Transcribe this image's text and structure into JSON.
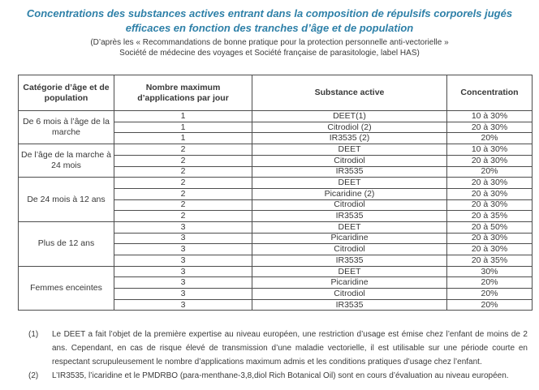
{
  "colors": {
    "title": "#2e80a8",
    "text": "#383838",
    "table_border": "#4d4d4d"
  },
  "title": {
    "lines": [
      "Concentrations des substances actives entrant dans la composition de répulsifs corporels jugés",
      "efficaces en fonction des tranches d’âge et de population"
    ]
  },
  "subtitle": {
    "lines": [
      "(D’après les « Recommandations de bonne pratique pour la protection personnelle anti-vectorielle »",
      "Société de médecine des voyages et Société française de parasitologie, label HAS)"
    ]
  },
  "table": {
    "headers": [
      "Catégorie d’âge et de population",
      "Nombre maximum d’applications par jour",
      "Substance active",
      "Concentration"
    ],
    "groups": [
      {
        "category": "De 6 mois à l’âge de la marche",
        "rows": [
          {
            "applications": "1",
            "substance": "DEET(1)",
            "concentration": "10 à 30%"
          },
          {
            "applications": "1",
            "substance": "Citrodiol (2)",
            "concentration": "20 à 30%"
          },
          {
            "applications": "1",
            "substance": "IR3535 (2)",
            "concentration": "20%"
          }
        ]
      },
      {
        "category": "De l’âge de la marche à 24 mois",
        "rows": [
          {
            "applications": "2",
            "substance": "DEET",
            "concentration": "10 à 30%"
          },
          {
            "applications": "2",
            "substance": "Citrodiol",
            "concentration": "20 à 30%"
          },
          {
            "applications": "2",
            "substance": "IR3535",
            "concentration": "20%"
          }
        ]
      },
      {
        "category": "De 24 mois à 12 ans",
        "rows": [
          {
            "applications": "2",
            "substance": "DEET",
            "concentration": "20 à 30%"
          },
          {
            "applications": "2",
            "substance": "Picaridine (2)",
            "concentration": "20 à 30%"
          },
          {
            "applications": "2",
            "substance": "Citrodiol",
            "concentration": "20 à 30%"
          },
          {
            "applications": "2",
            "substance": "IR3535",
            "concentration": "20 à 35%"
          }
        ]
      },
      {
        "category": "Plus de 12 ans",
        "rows": [
          {
            "applications": "3",
            "substance": "DEET",
            "concentration": "20 à 50%"
          },
          {
            "applications": "3",
            "substance": "Picaridine",
            "concentration": "20 à 30%"
          },
          {
            "applications": "3",
            "substance": "Citrodiol",
            "concentration": "20 à 30%"
          },
          {
            "applications": "3",
            "substance": "IR3535",
            "concentration": "20 à 35%"
          }
        ]
      },
      {
        "category": "Femmes enceintes",
        "rows": [
          {
            "applications": "3",
            "substance": "DEET",
            "concentration": "30%"
          },
          {
            "applications": "3",
            "substance": "Picaridine",
            "concentration": "20%"
          },
          {
            "applications": "3",
            "substance": "Citrodiol",
            "concentration": "20%"
          },
          {
            "applications": "3",
            "substance": "IR3535",
            "concentration": "20%"
          }
        ]
      }
    ]
  },
  "footnotes": [
    {
      "marker": "(1)",
      "text": "Le DEET a fait l’objet de la première expertise au niveau européen, une restriction d’usage est émise chez l’enfant de moins de 2 ans. Cependant, en cas de risque élevé de transmission d’une maladie vectorielle, il est utilisable sur une période courte en respectant scrupuleusement le nombre d’applications maximum admis et les conditions pratiques d’usage chez l’enfant."
    },
    {
      "marker": "(2)",
      "text": "L’IR3535, l’icaridine et le PMDRBO (para-menthane-3,8,diol Rich Botanical Oil) sont en cours d’évaluation au niveau européen."
    }
  ]
}
